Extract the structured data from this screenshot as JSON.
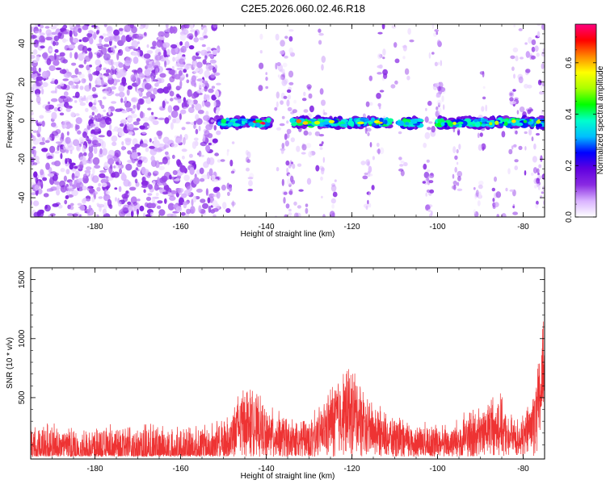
{
  "title": "C2E5.2026.060.02.46.R18",
  "chart_data": [
    {
      "type": "heatmap",
      "name": "spectrogram",
      "xlabel": "Height of straight line (km)",
      "ylabel": "Frequency (Hz)",
      "xlim": [
        -195,
        -75
      ],
      "ylim": [
        -50,
        50
      ],
      "xticks": [
        -180,
        -160,
        -140,
        -120,
        -100,
        -80
      ],
      "xtick_labels": [
        "-180",
        "-160",
        "-140",
        "-120",
        "-100",
        "-80"
      ],
      "yticks": [
        -40,
        -20,
        0,
        20,
        40
      ],
      "ytick_labels": [
        "-40",
        "-20",
        "0",
        "20",
        "40"
      ],
      "noise_band": {
        "x_start": -195,
        "x_end": -151,
        "amplitude": 0.15
      },
      "sparse_noise_regions": [
        [
          -151,
          -75
        ]
      ],
      "tonal_line": {
        "frequency_hz": -1,
        "segments": [
          {
            "x_start": -151,
            "x_end": -139,
            "peak_amplitude": 0.75
          },
          {
            "x_start": -134,
            "x_end": -111,
            "peak_amplitude": 0.75
          },
          {
            "x_start": -109,
            "x_end": -104,
            "peak_amplitude": 0.4
          },
          {
            "x_start": -100,
            "x_end": -75,
            "peak_amplitude": 0.72
          }
        ]
      },
      "colorbar": {
        "label": "Normalized spectral amplitude",
        "range": [
          0,
          0.75
        ],
        "ticks": [
          0.0,
          0.2,
          0.4,
          0.6
        ],
        "tick_labels": [
          "0.0",
          "0.2",
          "0.4",
          "0.6"
        ],
        "colors": [
          "#ffffff",
          "#d9b3ff",
          "#8a2be2",
          "#6000e0",
          "#0000ff",
          "#00bfff",
          "#00ffcc",
          "#00ff00",
          "#aaff00",
          "#ffff00",
          "#ff8800",
          "#ff0000",
          "#ff0080"
        ]
      }
    },
    {
      "type": "line",
      "name": "snr",
      "xlabel": "Height of straight line (km)",
      "ylabel": "SNR (10 * v/v)",
      "xlim": [
        -195,
        -75
      ],
      "ylim": [
        -20,
        1600
      ],
      "xticks": [
        -180,
        -160,
        -140,
        -120,
        -100,
        -80
      ],
      "xtick_labels": [
        "-180",
        "-160",
        "-140",
        "-120",
        "-100",
        "-80"
      ],
      "yticks": [
        500,
        1000,
        1500
      ],
      "ytick_labels": [
        "500",
        "1000",
        "1500"
      ],
      "color": "#ee3333",
      "envelope": {
        "x": [
          -195,
          -185,
          -175,
          -165,
          -155,
          -151,
          -148,
          -146,
          -145,
          -143,
          -140,
          -136,
          -132,
          -128,
          -126,
          -124,
          -122,
          -120,
          -118,
          -116,
          -113,
          -110,
          -106,
          -102,
          -98,
          -95,
          -92,
          -90,
          -88,
          -86,
          -85,
          -84,
          -82,
          -80,
          -79,
          -78,
          -77,
          -76,
          -75
        ],
        "base": [
          60,
          60,
          60,
          60,
          65,
          90,
          180,
          280,
          300,
          260,
          200,
          150,
          130,
          170,
          240,
          320,
          360,
          370,
          330,
          250,
          180,
          140,
          120,
          110,
          110,
          130,
          160,
          180,
          250,
          300,
          240,
          180,
          160,
          150,
          220,
          270,
          300,
          500,
          900
        ],
        "amp": [
          240,
          240,
          240,
          240,
          240,
          250,
          300,
          380,
          380,
          330,
          270,
          230,
          220,
          250,
          300,
          420,
          430,
          450,
          380,
          300,
          240,
          220,
          200,
          190,
          190,
          220,
          280,
          260,
          300,
          340,
          280,
          230,
          200,
          200,
          260,
          320,
          420,
          450,
          700
        ]
      }
    }
  ]
}
